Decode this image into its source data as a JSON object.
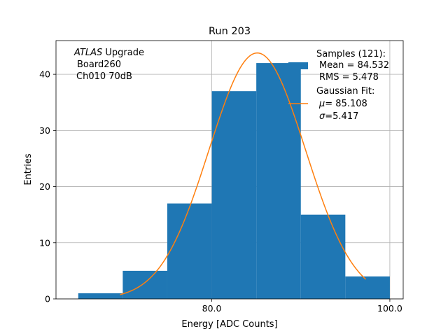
{
  "chart_data": {
    "type": "bar",
    "title": "Run 203",
    "xlabel": "Energy [ADC Counts]",
    "ylabel": "Entries",
    "xlim": [
      62.5,
      101.5
    ],
    "ylim": [
      0,
      46
    ],
    "grid": true,
    "bin_edges": [
      65,
      70,
      75,
      80,
      85,
      90,
      95,
      100
    ],
    "values": [
      1,
      5,
      17,
      37,
      42,
      15,
      4
    ],
    "bar_color": "#1f77b4",
    "fit_color": "#ff7f0e",
    "x_ticks": [
      80,
      100
    ],
    "x_tick_labels": [
      "80.0",
      "100.0"
    ],
    "y_ticks": [
      0,
      10,
      20,
      30,
      40
    ],
    "y_tick_labels": [
      "0",
      "10",
      "20",
      "30",
      "40"
    ],
    "gaussian_fit": {
      "mu": 85.108,
      "sigma": 5.417,
      "amplitude": 43.8,
      "x_range": [
        69.7,
        97.3
      ]
    },
    "annotation": {
      "line1_italic": "ATLAS",
      "line1_rest": " Upgrade",
      "line2": "Board260",
      "line3": "Ch010 70dB"
    },
    "legend": {
      "position": "upper right",
      "samples": {
        "title": "Samples (121):",
        "mean": "Mean = 84.532",
        "rms": "RMS = 5.478"
      },
      "fit": {
        "title": "Gaussian Fit:",
        "mu": "= 85.108",
        "sigma": "=5.417"
      }
    }
  }
}
